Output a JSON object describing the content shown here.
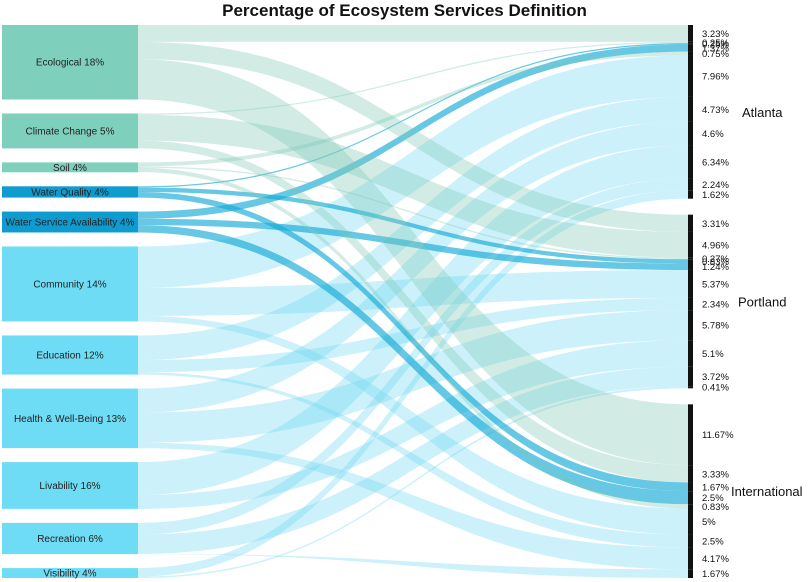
{
  "title": "Percentage of Ecosystem Services Definition",
  "chart_data": {
    "type": "sankey",
    "sources": [
      {
        "label": "Ecological 18%",
        "color": "#7fcfbd"
      },
      {
        "label": "Climate Change 5%",
        "color": "#7fcfbd"
      },
      {
        "label": "Soil 4%",
        "color": "#7fcfbd"
      },
      {
        "label": "Water Quality 4%",
        "color": "#0e9bcf"
      },
      {
        "label": "Water Service Availability 4%",
        "color": "#0e9bcf"
      },
      {
        "label": "Community 14%",
        "color": "#6fdcf5"
      },
      {
        "label": "Education 12%",
        "color": "#6fdcf5"
      },
      {
        "label": "Health & Well-Being 13%",
        "color": "#6fdcf5"
      },
      {
        "label": "Livability 16%",
        "color": "#6fdcf5"
      },
      {
        "label": "Recreation 6%",
        "color": "#6fdcf5"
      },
      {
        "label": "Visibility 4%",
        "color": "#6fdcf5"
      }
    ],
    "groups": [
      {
        "label": "Atlanta",
        "targets": [
          {
            "source": 0,
            "value": 3.23
          },
          {
            "source": 1,
            "value": 0.25
          },
          {
            "source": 3,
            "value": 0.25
          },
          {
            "source": 4,
            "value": 1.37
          },
          {
            "source": 2,
            "value": 0.75
          },
          {
            "source": 5,
            "value": 7.96
          },
          {
            "source": 6,
            "value": 4.73
          },
          {
            "source": 7,
            "value": 4.6
          },
          {
            "source": 8,
            "value": 6.34
          },
          {
            "source": 9,
            "value": 2.24
          },
          {
            "source": 10,
            "value": 1.62
          }
        ]
      },
      {
        "label": "Portland",
        "targets": [
          {
            "source": 0,
            "value": 3.31
          },
          {
            "source": 1,
            "value": 4.96
          },
          {
            "source": 2,
            "value": 0.27
          },
          {
            "source": 3,
            "value": 0.83
          },
          {
            "source": 4,
            "value": 1.24
          },
          {
            "source": 5,
            "value": 5.37
          },
          {
            "source": 6,
            "value": 2.34
          },
          {
            "source": 7,
            "value": 5.78
          },
          {
            "source": 8,
            "value": 5.1
          },
          {
            "source": 9,
            "value": 3.72
          },
          {
            "source": 10,
            "value": 0.41
          }
        ]
      },
      {
        "label": "International",
        "targets": [
          {
            "source": 0,
            "value": 11.67
          },
          {
            "source": 1,
            "value": 3.33
          },
          {
            "source": 3,
            "value": 1.67
          },
          {
            "source": 4,
            "value": 2.5
          },
          {
            "source": 2,
            "value": 0.83
          },
          {
            "source": 5,
            "value": 5
          },
          {
            "source": 6,
            "value": 2.5
          },
          {
            "source": 7,
            "value": 4.17
          },
          {
            "source": 9,
            "value": 1.67
          }
        ]
      }
    ],
    "value_labels": {
      "Atlanta": [
        "3.23%",
        "0.25%",
        "0.25%",
        "1.37%",
        "0.75%",
        "7.96%",
        "4.73%",
        "4.6%",
        "6.34%",
        "2.24%",
        "1.62%"
      ],
      "Portland": [
        "3.31%",
        "4.96%",
        "0.27%",
        "0.83%",
        "1.24%",
        "5.37%",
        "2.34%",
        "5.78%",
        "5.1%",
        "3.72%",
        "0.41%"
      ],
      "International": [
        "11.67%",
        "3.33%",
        "1.67%",
        "2.5%",
        "0.83%",
        "5%",
        "2.5%",
        "4.17%",
        "1.67%"
      ]
    }
  }
}
